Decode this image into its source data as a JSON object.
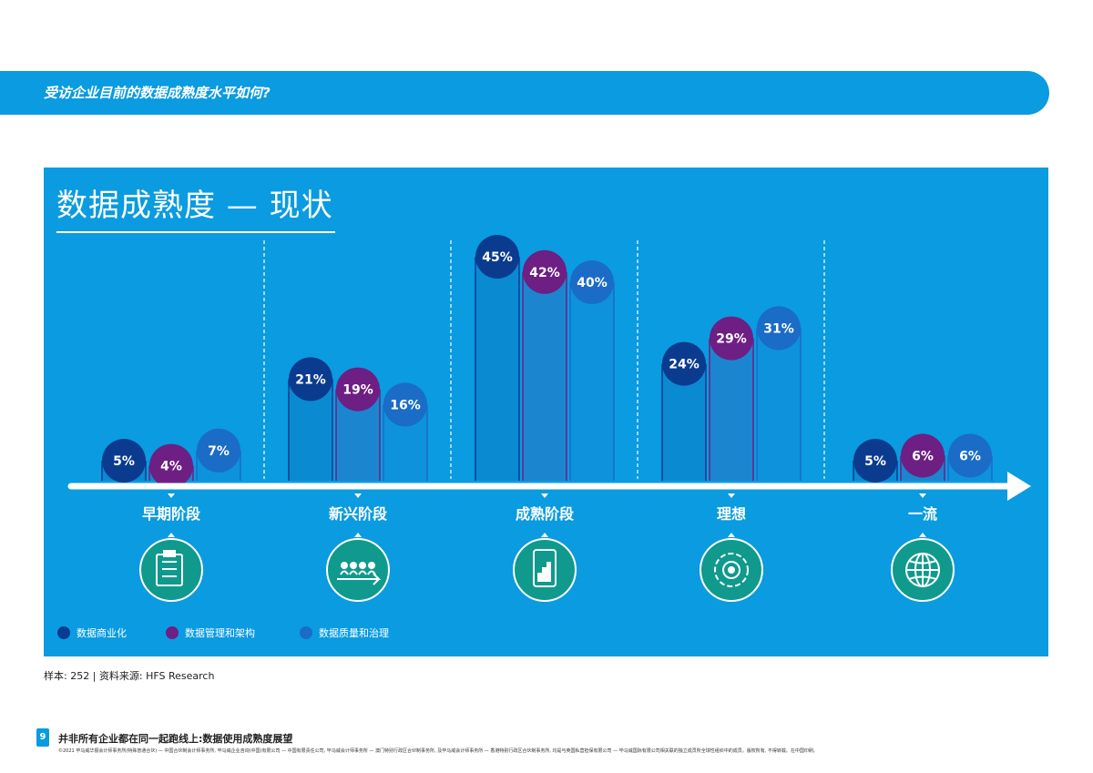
{
  "header": {
    "question": "受访企业目前的数据成熟度水平如何?"
  },
  "panel": {
    "title": "数据成熟度 — 现状"
  },
  "colors": {
    "background": "#0a9be0",
    "series1": "#0b3b8f",
    "series2": "#6d1f84",
    "series3": "#1a6cc7",
    "icon_circle": "#0f9a8d"
  },
  "chart_data": {
    "type": "bar",
    "title": "数据成熟度 — 现状",
    "categories": [
      "早期阶段",
      "新兴阶段",
      "成熟阶段",
      "理想",
      "一流"
    ],
    "series": [
      {
        "name": "数据商业化",
        "values": [
          5,
          21,
          45,
          24,
          5
        ],
        "labels": [
          "5%",
          "21%",
          "45%",
          "24%",
          "5%"
        ]
      },
      {
        "name": "数据管理和架构",
        "values": [
          4,
          19,
          42,
          29,
          6
        ],
        "labels": [
          "4%",
          "19%",
          "42%",
          "29%",
          "6%"
        ]
      },
      {
        "name": "数据质量和治理",
        "values": [
          7,
          16,
          40,
          31,
          6
        ],
        "labels": [
          "7%",
          "16%",
          "40%",
          "31%",
          "6%"
        ]
      }
    ],
    "ylim": [
      0,
      50
    ],
    "xlabel": "",
    "ylabel": ""
  },
  "stage_icons": [
    "clipboard-icon",
    "team-growth-icon",
    "tablet-chart-icon",
    "gear-target-icon",
    "globe-icon"
  ],
  "source_note": "样本: 252 | 资料来源: HFS Research",
  "footer": {
    "page_number": "9",
    "title": "并非所有企业都在同一起跑线上:数据使用成熟度展望",
    "legal": "©2021 毕马威华振会计师事务所(特殊普通合伙) — 中国合伙制会计师事务所, 毕马威企业咨询(中国)有限公司 — 中国有限责任公司, 毕马威会计师事务所 — 澳门特别行政区合伙制事务所, 及毕马威会计师事务所 — 香港特别行政区合伙制事务所, 均是与英国私营担保有限公司 — 毕马威国际有限公司相关联的独立成员所全球性组织中的成员。版权所有, 不得转载。在中国印刷。"
  }
}
